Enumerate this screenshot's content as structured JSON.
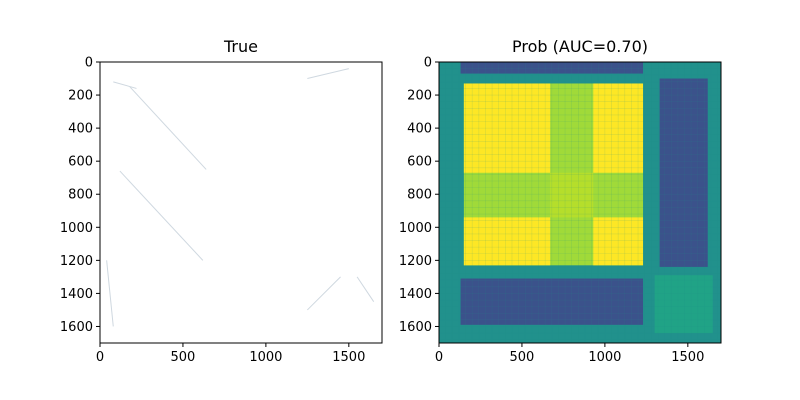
{
  "chart_data": [
    {
      "type": "heatmap",
      "title": "True",
      "xlim": [
        0,
        1700
      ],
      "ylim": [
        1700,
        0
      ],
      "x_ticks": [
        0,
        500,
        1000,
        1500
      ],
      "y_ticks": [
        0,
        200,
        400,
        600,
        800,
        1000,
        1200,
        1400,
        1600
      ],
      "grid": false,
      "background_color": "#ffffff",
      "faint_lines": [
        {
          "x0": 180,
          "y0": 150,
          "x1": 640,
          "y1": 650
        },
        {
          "x0": 120,
          "y0": 660,
          "x1": 620,
          "y1": 1200
        },
        {
          "x0": 80,
          "y0": 120,
          "x1": 220,
          "y1": 160
        },
        {
          "x0": 1250,
          "y0": 100,
          "x1": 1500,
          "y1": 40
        },
        {
          "x0": 1250,
          "y0": 1500,
          "x1": 1450,
          "y1": 1300
        },
        {
          "x0": 1550,
          "y0": 1300,
          "x1": 1650,
          "y1": 1450
        },
        {
          "x0": 40,
          "y0": 1200,
          "x1": 80,
          "y1": 1600
        }
      ]
    },
    {
      "type": "heatmap",
      "title": "Prob (AUC=0.70)",
      "xlim": [
        0,
        1700
      ],
      "ylim": [
        1700,
        0
      ],
      "x_ticks": [
        0,
        500,
        1000,
        1500
      ],
      "y_ticks": [
        0,
        200,
        400,
        600,
        800,
        1000,
        1200,
        1400,
        1600
      ],
      "grid": false,
      "colormap": "viridis",
      "color_low": "#3b528b",
      "color_mid": "#21918c",
      "color_high": "#fde725",
      "blocks": [
        {
          "x": [
            0,
            1700
          ],
          "y": [
            0,
            1700
          ],
          "value": 0.5,
          "color": "#21918c"
        },
        {
          "x": [
            130,
            1230
          ],
          "y": [
            0,
            70
          ],
          "value": 0.25,
          "color": "#3b528b"
        },
        {
          "x": [
            150,
            1230
          ],
          "y": [
            130,
            1230
          ],
          "value": 0.5,
          "color": "#a0da39"
        },
        {
          "x": [
            150,
            670
          ],
          "y": [
            130,
            670
          ],
          "value": 1.0,
          "color": "#fde725"
        },
        {
          "x": [
            930,
            1230
          ],
          "y": [
            130,
            670
          ],
          "value": 1.0,
          "color": "#fde725"
        },
        {
          "x": [
            150,
            670
          ],
          "y": [
            940,
            1230
          ],
          "value": 1.0,
          "color": "#fde725"
        },
        {
          "x": [
            930,
            1230
          ],
          "y": [
            940,
            1230
          ],
          "value": 1.0,
          "color": "#fde725"
        },
        {
          "x": [
            670,
            930
          ],
          "y": [
            670,
            940
          ],
          "value": 0.75,
          "color": "#b5de2b"
        },
        {
          "x": [
            130,
            1230
          ],
          "y": [
            1310,
            1590
          ],
          "value": 0.25,
          "color": "#3b528b"
        },
        {
          "x": [
            1330,
            1620
          ],
          "y": [
            100,
            1240
          ],
          "value": 0.25,
          "color": "#3b528b"
        },
        {
          "x": [
            1300,
            1650
          ],
          "y": [
            1290,
            1640
          ],
          "value": 0.45,
          "color": "#20a386"
        }
      ]
    }
  ]
}
